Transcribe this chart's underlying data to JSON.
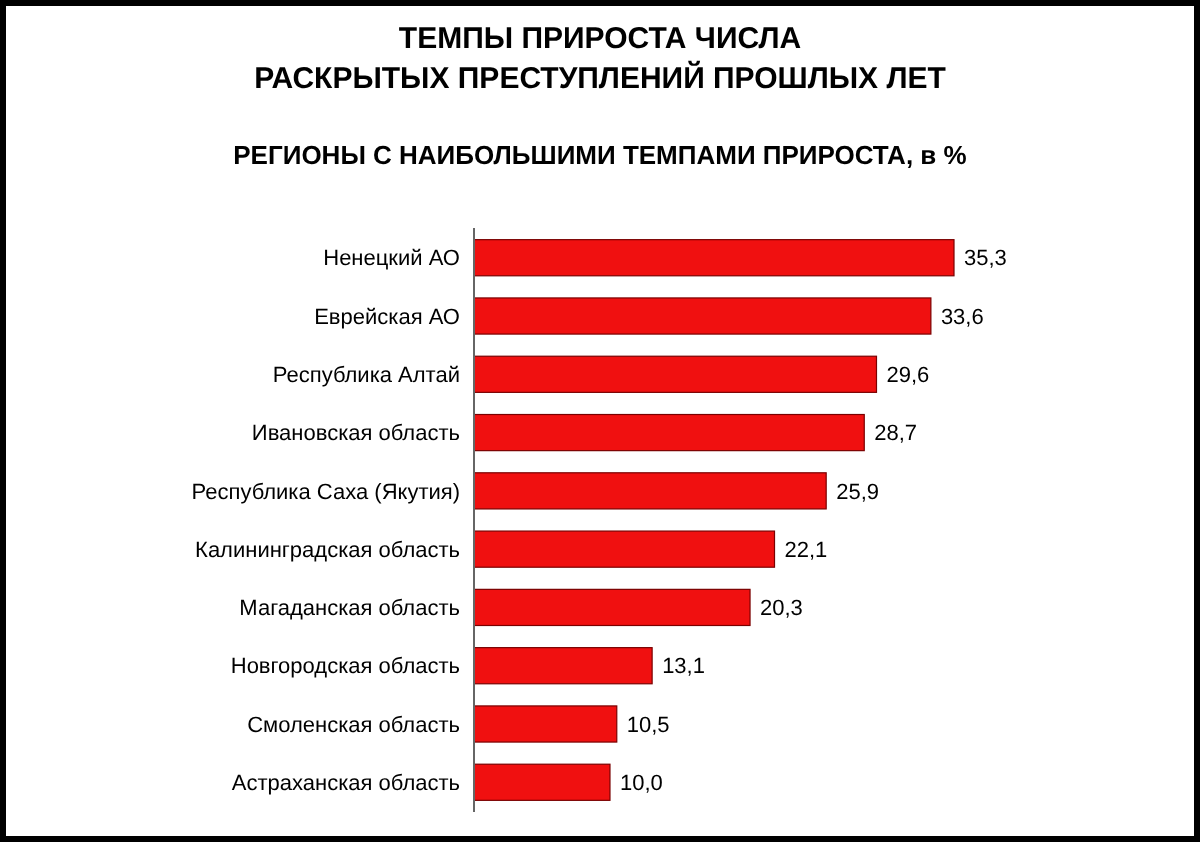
{
  "chart_data": {
    "type": "bar",
    "orientation": "horizontal",
    "title": "ТЕМПЫ ПРИРОСТА ЧИСЛА\nРАСКРЫТЫХ ПРЕСТУПЛЕНИЙ ПРОШЛЫХ ЛЕТ",
    "subtitle": "РЕГИОНЫ С НАИБОЛЬШИМИ ТЕМПАМИ ПРИРОСТА, в %",
    "categories": [
      "Ненецкий АО",
      "Еврейская АО",
      "Республика Алтай",
      "Ивановская область",
      "Республика Саха (Якутия)",
      "Калининградская область",
      "Магаданская область",
      "Новгородская  область",
      "Смоленская область",
      "Астраханская область"
    ],
    "values": [
      35.3,
      33.6,
      29.6,
      28.7,
      25.9,
      22.1,
      20.3,
      13.1,
      10.5,
      10.0
    ],
    "value_labels": [
      "35,3",
      "33,6",
      "29,6",
      "28,7",
      "25,9",
      "22,1",
      "20,3",
      "13,1",
      "10,5",
      "10,0"
    ],
    "color": "#f01010",
    "tick_labels": "y"
  }
}
